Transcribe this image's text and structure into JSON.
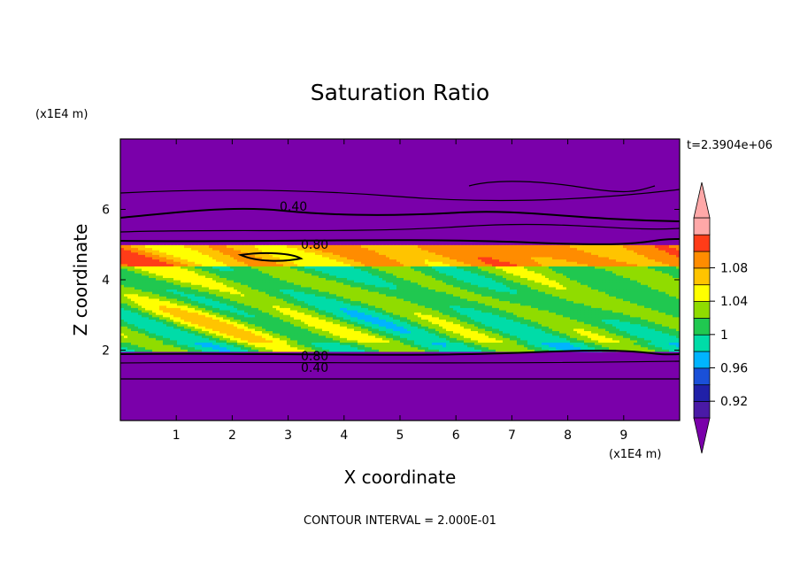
{
  "chart_data": {
    "type": "heatmap",
    "title": "Saturation Ratio",
    "xlabel": "X coordinate",
    "ylabel": "Z coordinate",
    "x_unit": "(x1E4 m)",
    "y_unit": "(x1E4 m)",
    "time_label": "t=2.3904e+06",
    "footer": "CONTOUR INTERVAL = 2.000E-01",
    "xlim": [
      0,
      10
    ],
    "ylim": [
      0,
      8
    ],
    "x_ticks": [
      "1",
      "2",
      "3",
      "4",
      "5",
      "6",
      "7",
      "8",
      "9"
    ],
    "y_ticks": [
      "2",
      "4",
      "6"
    ],
    "colorbar": {
      "min": 0.9,
      "max": 1.1,
      "step": 0.02,
      "tick_labels": [
        "0.92",
        "0.96",
        "1",
        "1.04",
        "1.08"
      ],
      "colors": [
        "#4a1aa6",
        "#2020a8",
        "#1a50d8",
        "#00b4ff",
        "#00dca8",
        "#20c850",
        "#90dc00",
        "#ffff00",
        "#ffc400",
        "#ff8c00",
        "#ff3c18",
        "#ffa8a8"
      ],
      "under_color": "#7a00aa",
      "over_color": "#ffa8a8"
    },
    "contour_labels": [
      "0.40",
      "0.80",
      "0.80",
      "0.40"
    ],
    "background_color": "#7a00aa"
  }
}
